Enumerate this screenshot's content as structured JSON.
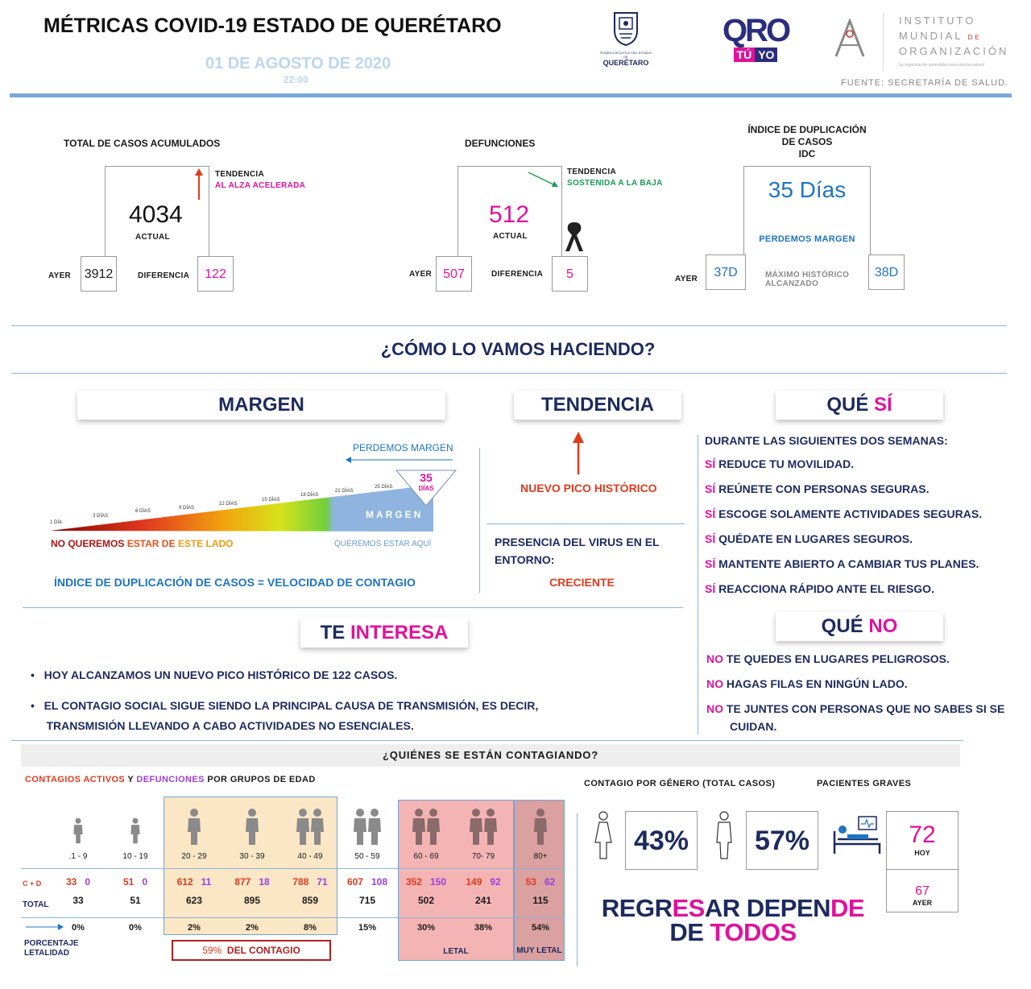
{
  "header": {
    "title": "MÉTRICAS COVID-19 ESTADO DE QUERÉTARO",
    "date": "01 DE AGOSTO DE 2020",
    "time": "22:00",
    "gov_logo_line1": "PODER EJECUTIVO DEL ESTADO DE",
    "gov_logo_line2": "QUERÉTARO",
    "qro_logo_top": "QRO",
    "qro_logo_tu": "TÚ",
    "qro_logo_yo": "YO",
    "inst_line1": "INSTITUTO",
    "inst_line2": "MUNDIAL",
    "inst_de": "DE",
    "inst_line3": "ORGANIZACIÓN",
    "inst_tagline": "La organización entendida como ciencia natural",
    "source": "FUENTE: SECRETARÍA DE SALUD."
  },
  "cases": {
    "title": "TOTAL DE CASOS ACUMULADOS",
    "trend_label": "TENDENCIA",
    "trend_value": "AL ALZA ACELERADA",
    "current": "4034",
    "current_label": "ACTUAL",
    "yesterday_label": "AYER",
    "yesterday": "3912",
    "diff_label": "DIFERENCIA",
    "diff": "122"
  },
  "deaths": {
    "title": "DEFUNCIONES",
    "trend_label": "TENDENCIA",
    "trend_value": "SOSTENIDA A LA BAJA",
    "current": "512",
    "current_label": "ACTUAL",
    "yesterday_label": "AYER",
    "yesterday": "507",
    "diff_label": "DIFERENCIA",
    "diff": "5"
  },
  "idc": {
    "title1": "ÍNDICE DE DUPLICACIÓN",
    "title2": "DE CASOS",
    "title3": "IDC",
    "current": "35 Días",
    "status": "PERDEMOS MARGEN",
    "yesterday_label": "AYER",
    "yesterday": "37D",
    "max_label1": "MÁXIMO HISTÓRICO",
    "max_label2": "ALCANZADO",
    "max": "38D"
  },
  "how": {
    "title": "¿CÓMO LO VAMOS HACIENDO?"
  },
  "margen": {
    "title": "MARGEN",
    "losing": "PERDEMOS MARGEN",
    "days": [
      "1 DÍA",
      "3 DÍAS",
      "6 DÍAS",
      "9 DÍAS",
      "12 DÍAS",
      "15 DÍAS",
      "18 DÍAS",
      "21 DÍAS",
      "25 DÍAS"
    ],
    "marker_value": "35",
    "marker_unit": "DÍAS",
    "bar_label": "MARGEN",
    "bad_side_1": "NO QUEREMOS ",
    "bad_side_2": "ESTAR DE ",
    "bad_side_3": "ESTE LADO",
    "good_side": "QUEREMOS ESTAR AQUÍ",
    "footer": "ÍNDICE DE DUPLICACIÓN DE CASOS = VELOCIDAD DE CONTAGIO"
  },
  "tendencia": {
    "title": "TENDENCIA",
    "peak": "NUEVO PICO HISTÓRICO",
    "presence": "PRESENCIA DEL VIRUS EN EL ENTORNO:",
    "presence_value": "CRECIENTE"
  },
  "que_si": {
    "title_a": "QUÉ ",
    "title_b": "SÍ",
    "intro": "DURANTE LAS SIGUIENTES DOS SEMANAS:",
    "items": [
      {
        "k": "SÍ",
        "t": " REDUCE TU MOVILIDAD."
      },
      {
        "k": "SÍ",
        "t": " REÚNETE CON PERSONAS SEGURAS."
      },
      {
        "k": "SÍ",
        "t": " ESCOGE SOLAMENTE ACTIVIDADES SEGURAS."
      },
      {
        "k": "SÍ",
        "t": " QUÉDATE EN LUGARES SEGUROS."
      },
      {
        "k": "SÍ",
        "t": " MANTENTE ABIERTO A CAMBIAR TUS PLANES."
      },
      {
        "k": "SÍ",
        "t": " REACCIONA RÁPIDO ANTE EL RIESGO."
      }
    ]
  },
  "que_no": {
    "title_a": "QUÉ ",
    "title_b": "NO",
    "items": [
      {
        "k": "NO",
        "t": " TE QUEDES EN LUGARES PELIGROSOS."
      },
      {
        "k": "NO",
        "t": " HAGAS FILAS EN NINGÚN LADO."
      },
      {
        "k": "NO",
        "t": " TE JUNTES CON PERSONAS QUE NO SABES SI SE"
      }
    ],
    "item3_cont": "CUIDAN."
  },
  "interesa": {
    "title_a": "TE ",
    "title_b": "INTERESA",
    "bullet1": "HOY ALCANZAMOS UN NUEVO PICO HISTÓRICO DE 122 CASOS.",
    "bullet2a": "EL CONTAGIO SOCIAL SIGUE SIENDO LA PRINCIPAL CAUSA DE TRANSMISIÓN, ES DECIR,",
    "bullet2b": "TRANSMISIÓN LLEVANDO A CABO ACTIVIDADES NO ESENCIALES."
  },
  "quienes": {
    "title": "¿QUIÉNES SE ESTÁN CONTAGIANDO?",
    "subtitle_a": "CONTAGIOS ACTIVOS",
    "subtitle_y": " Y ",
    "subtitle_b": "DEFUNCIONES",
    "subtitle_c": " POR GRUPOS DE EDAD",
    "row_cd": "C + D",
    "row_total": "TOTAL",
    "row_pct1": "PORCENTAJE",
    "row_pct2": "LETALIDAD",
    "groups": [
      {
        "age": ".1 - 9",
        "c": "33",
        "d": "0",
        "total": "33",
        "pct": "0%"
      },
      {
        "age": "10 - 19",
        "c": "51",
        "d": "0",
        "total": "51",
        "pct": "0%"
      },
      {
        "age": "20 - 29",
        "c": "612",
        "d": "11",
        "total": "623",
        "pct": "2%"
      },
      {
        "age": "30 - 39",
        "c": "877",
        "d": "18",
        "total": "895",
        "pct": "2%"
      },
      {
        "age": "40 - 49",
        "c": "788",
        "d": "71",
        "total": "859",
        "pct": "8%"
      },
      {
        "age": "50 - 59",
        "c": "607",
        "d": "108",
        "total": "715",
        "pct": "15%"
      },
      {
        "age": "60 - 69",
        "c": "352",
        "d": "150",
        "total": "502",
        "pct": "30%"
      },
      {
        "age": "70- 79",
        "c": "149",
        "d": "92",
        "total": "241",
        "pct": "38%"
      },
      {
        "age": "80+",
        "c": "53",
        "d": "62",
        "total": "115",
        "pct": "54%"
      }
    ],
    "contagio_pct": "59%",
    "contagio_label": "DEL CONTAGIO",
    "letal": "LETAL",
    "muy_letal": "MUY LETAL"
  },
  "genero": {
    "title": "CONTAGIO POR GÉNERO (TOTAL CASOS)",
    "female": "43%",
    "male": "57%"
  },
  "graves": {
    "title": "PACIENTES GRAVES",
    "today": "72",
    "today_label": "HOY",
    "yesterday": "67",
    "yesterday_label": "AYER"
  },
  "slogan": {
    "l1a": "REGR",
    "l1b": "ES",
    "l1c": "AR DEPEN",
    "l1d": "DE",
    "l2a": "DE ",
    "l2b": "TODOS"
  },
  "colors": {
    "navy": "#1c2a5e",
    "pink": "#e0129b",
    "red": "#e03a1e",
    "green": "#1a9a55",
    "blue": "#1f73c2",
    "purple": "#9b3fe0"
  }
}
